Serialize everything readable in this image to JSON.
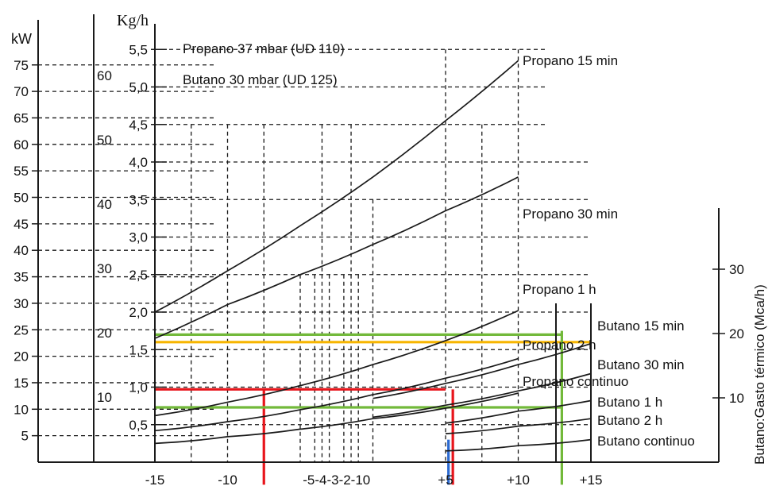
{
  "chart_data": {
    "type": "line",
    "units": {
      "kw": "kW",
      "kgh": "Kg/h",
      "mcah": "Butano:Gasto térmico (Mca/h)"
    },
    "kw_ticks": [
      "75",
      "70",
      "65",
      "60",
      "55",
      "50",
      "45",
      "40",
      "35",
      "30",
      "25",
      "20",
      "15",
      "10",
      "5"
    ],
    "mca_left_ticks": [
      "60",
      "50",
      "40",
      "30",
      "20",
      "10"
    ],
    "kgh_ticks": [
      "5,5",
      "5,0",
      "4,5",
      "4,0",
      "3,5",
      "3,0",
      "2,5",
      "2,0",
      "1,5",
      "1,0",
      "0,5"
    ],
    "right_ticks": [
      "30",
      "20",
      "10"
    ],
    "x_ticks": [
      "-15",
      "-10",
      "-5",
      "-4",
      "-3",
      "-2",
      "-1",
      "0",
      "+5",
      "+10",
      "+15"
    ],
    "x_tick_labels_printed": [
      "-15",
      "-10",
      "-5-4-3-2-10",
      "+5",
      "+10",
      "+15"
    ],
    "legend": [
      "Propano 37 mbar (UD 110)",
      "Butano 30 mbar (UD 125)"
    ],
    "series": [
      {
        "name": "Propano 15 min",
        "x": [
          -15,
          -10,
          -5,
          0,
          5,
          10
        ],
        "y": [
          2.0,
          2.55,
          3.15,
          3.8,
          4.55,
          5.35
        ]
      },
      {
        "name": "Propano 30 min",
        "x": [
          -15,
          -10,
          -5,
          0,
          5,
          10
        ],
        "y": [
          1.65,
          2.1,
          2.5,
          2.9,
          3.35,
          3.8
        ]
      },
      {
        "name": "Propano 1 h",
        "x": [
          -15,
          -10,
          -5,
          0,
          5,
          10
        ],
        "y": [
          0.62,
          0.8,
          1.02,
          1.3,
          1.62,
          2.02
        ]
      },
      {
        "name": "Propano 2 h",
        "x": [
          -15,
          -10,
          -5,
          0,
          5,
          10
        ],
        "y": [
          0.42,
          0.54,
          0.7,
          0.9,
          1.12,
          1.38
        ]
      },
      {
        "name": "Propano continuo",
        "x": [
          -15,
          -10,
          -5,
          0,
          5,
          10
        ],
        "y": [
          0.25,
          0.34,
          0.44,
          0.58,
          0.72,
          0.92
        ]
      },
      {
        "name": "Butano 15 min",
        "x": [
          0,
          5,
          10,
          15
        ],
        "y": [
          0.85,
          1.05,
          1.3,
          1.58
        ]
      },
      {
        "name": "Butano 30 min",
        "x": [
          0,
          5,
          10,
          15
        ],
        "y": [
          0.6,
          0.76,
          0.95,
          1.18
        ]
      },
      {
        "name": "Butano 1 h",
        "x": [
          5,
          10,
          15
        ],
        "y": [
          0.52,
          0.68,
          0.82
        ]
      },
      {
        "name": "Butano 2 h",
        "x": [
          5,
          10,
          15
        ],
        "y": [
          0.38,
          0.48,
          0.58
        ]
      },
      {
        "name": "Butano continuo",
        "x": [
          5,
          10,
          15
        ],
        "y": [
          0.15,
          0.22,
          0.3
        ]
      }
    ],
    "highlights": [
      {
        "color": "#e8151b",
        "kind": "h",
        "y": 0.97,
        "x_from": -15,
        "x_to": 5
      },
      {
        "color": "#e8151b",
        "kind": "v",
        "x": -7.5,
        "y_from": -0.3,
        "y_to": 0.97
      },
      {
        "color": "#e8151b",
        "kind": "v",
        "x": 5.5,
        "y_from": -0.3,
        "y_to": 0.97
      },
      {
        "color": "#2d6bd1",
        "kind": "v",
        "x": 5.2,
        "y_from": -0.3,
        "y_to": 0.3
      },
      {
        "color": "#f7b500",
        "kind": "h",
        "y": 1.6,
        "x_from": -15,
        "x_to": 15
      },
      {
        "color": "#72b93a",
        "kind": "h",
        "y": 1.7,
        "x_from": -15,
        "x_to": 13
      },
      {
        "color": "#72b93a",
        "kind": "h",
        "y": 0.73,
        "x_from": -15,
        "x_to": 13
      },
      {
        "color": "#72b93a",
        "kind": "v",
        "x": 13,
        "y_from": -0.3,
        "y_to": 1.75
      }
    ],
    "xlim": [
      -15,
      15
    ],
    "ylim": [
      0,
      5.5
    ],
    "grid": true,
    "legend_placement": "top-left"
  }
}
